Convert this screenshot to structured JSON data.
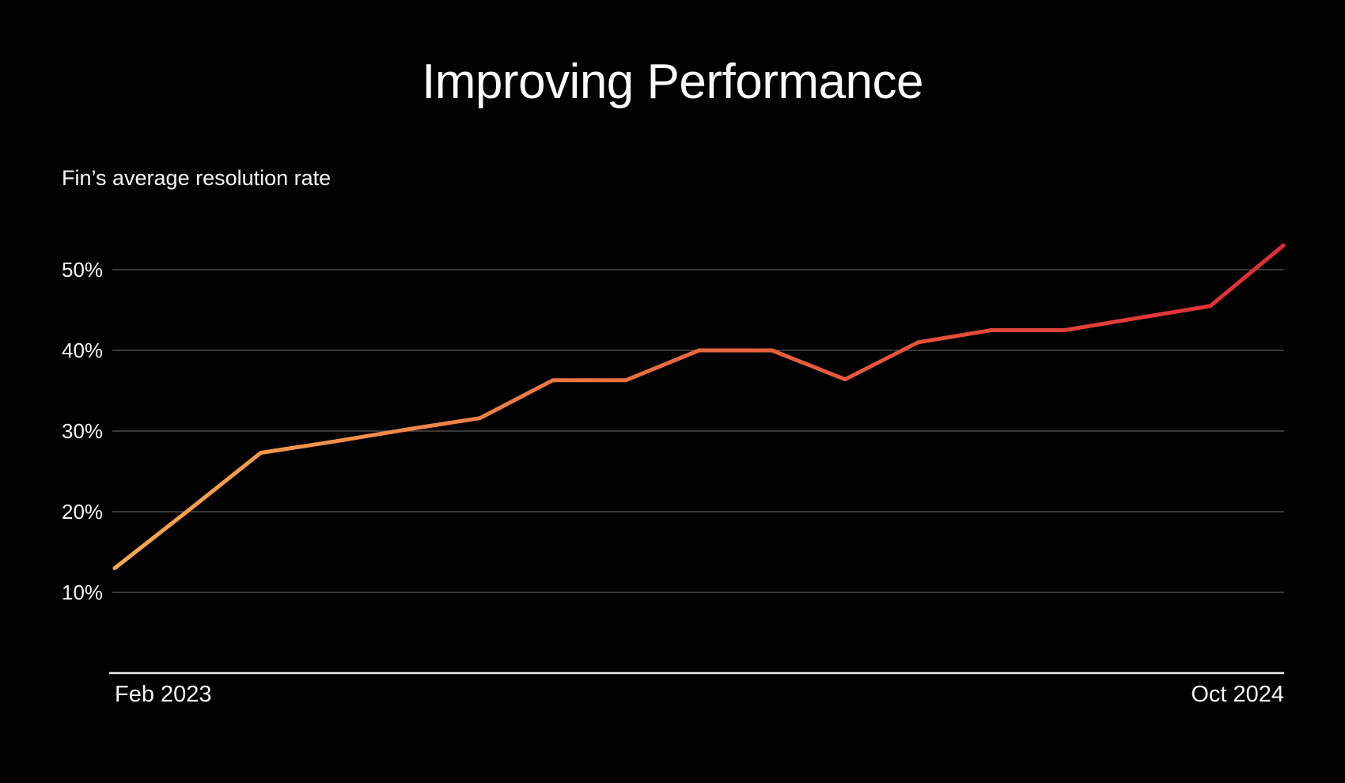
{
  "page": {
    "background": "#020202"
  },
  "chart_data": {
    "type": "line",
    "title": "Improving Performance",
    "subtitle": "Fin’s average resolution rate",
    "x_axis": {
      "start_label": "Feb 2023",
      "end_label": "Oct 2024"
    },
    "y_axis": {
      "ticks": [
        10,
        20,
        30,
        40,
        50
      ],
      "tick_suffix": "%",
      "range": [
        0,
        55
      ]
    },
    "series": [
      {
        "name": "Fin’s average resolution rate",
        "values_pct": [
          13,
          20.1,
          27.3,
          28.7,
          30.2,
          31.6,
          36.3,
          36.3,
          40,
          40,
          36.4,
          41,
          42.5,
          42.5,
          44,
          45.5,
          53
        ]
      }
    ],
    "grid": "horizontal",
    "legend": "none",
    "colors": {
      "line_gradient_start": "#F5A94F",
      "line_gradient_mid": "#E8673F",
      "line_gradient_end": "#DF2B37",
      "gridline": "#4A4A4A",
      "axis_line": "#ECECEC",
      "text": "#F5F5F5"
    }
  }
}
